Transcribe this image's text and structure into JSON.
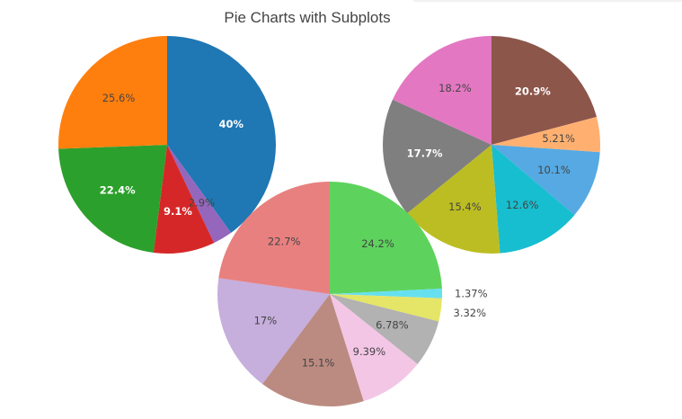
{
  "chart_data": {
    "type": "pie",
    "title": "Pie Charts with Subplots",
    "pies": [
      {
        "slices": [
          {
            "value": 40.0,
            "label": "40%",
            "color": "#1f77b4",
            "label_color": "#ffffff",
            "bold": true
          },
          {
            "value": 2.9,
            "label": "2.9%",
            "color": "#9467bd",
            "label_color": "#444444",
            "bold": false
          },
          {
            "value": 9.1,
            "label": "9.1%",
            "color": "#d62728",
            "label_color": "#ffffff",
            "bold": true
          },
          {
            "value": 22.4,
            "label": "22.4%",
            "color": "#2ca02c",
            "label_color": "#ffffff",
            "bold": true
          },
          {
            "value": 25.6,
            "label": "25.6%",
            "color": "#ff7f0e",
            "label_color": "#444444",
            "bold": false
          }
        ]
      },
      {
        "slices": [
          {
            "value": 20.9,
            "label": "20.9%",
            "color": "#8c564b",
            "label_color": "#ffffff",
            "bold": true
          },
          {
            "value": 5.21,
            "label": "5.21%",
            "color": "#ffb070",
            "label_color": "#444444",
            "bold": false
          },
          {
            "value": 10.1,
            "label": "10.1%",
            "color": "#56a9e2",
            "label_color": "#444444",
            "bold": false
          },
          {
            "value": 12.6,
            "label": "12.6%",
            "color": "#17becf",
            "label_color": "#444444",
            "bold": false
          },
          {
            "value": 15.4,
            "label": "15.4%",
            "color": "#bcbd22",
            "label_color": "#444444",
            "bold": false
          },
          {
            "value": 17.7,
            "label": "17.7%",
            "color": "#7f7f7f",
            "label_color": "#ffffff",
            "bold": true
          },
          {
            "value": 18.2,
            "label": "18.2%",
            "color": "#e377c2",
            "label_color": "#444444",
            "bold": false
          }
        ]
      },
      {
        "slices": [
          {
            "value": 24.2,
            "label": "24.2%",
            "color": "#5dd35d",
            "label_color": "#444444",
            "bold": false
          },
          {
            "value": 1.37,
            "label": "1.37%",
            "color": "#66e0ef",
            "label_color": "#444444",
            "bold": false
          },
          {
            "value": 3.32,
            "label": "3.32%",
            "color": "#e5e567",
            "label_color": "#444444",
            "bold": false
          },
          {
            "value": 6.78,
            "label": "6.78%",
            "color": "#b2b2b2",
            "label_color": "#444444",
            "bold": false
          },
          {
            "value": 9.39,
            "label": "9.39%",
            "color": "#f4c6e6",
            "label_color": "#444444",
            "bold": false
          },
          {
            "value": 15.1,
            "label": "15.1%",
            "color": "#bb8b81",
            "label_color": "#444444",
            "bold": false
          },
          {
            "value": 17.0,
            "label": "17%",
            "color": "#c6aedd",
            "label_color": "#444444",
            "bold": false
          },
          {
            "value": 22.7,
            "label": "22.7%",
            "color": "#e88080",
            "label_color": "#444444",
            "bold": false
          }
        ]
      }
    ]
  }
}
